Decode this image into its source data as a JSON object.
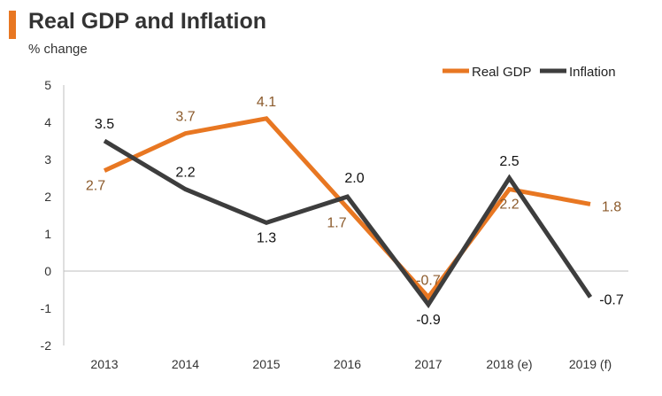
{
  "header": {
    "title": "Real GDP and Inflation",
    "subtitle": "% change"
  },
  "colors": {
    "accent": "#e87722",
    "gdp": "#e87722",
    "inflation": "#3d3d3d",
    "gdp_label": "#8b5a2b",
    "inflation_label": "#111111",
    "axis": "#bfbfbf"
  },
  "chart_data": {
    "type": "line",
    "title": "Real GDP and Inflation",
    "ylabel": "% change",
    "xlabel": "",
    "categories": [
      "2013",
      "2014",
      "2015",
      "2016",
      "2017",
      "2018 (e)",
      "2019 (f)"
    ],
    "series": [
      {
        "name": "Real GDP",
        "values": [
          2.7,
          3.7,
          4.1,
          1.7,
          -0.7,
          2.2,
          1.8
        ],
        "labels": [
          "2.7",
          "3.7",
          "4.1",
          "1.7",
          "-0.7",
          "2.2",
          "1.8"
        ]
      },
      {
        "name": "Inflation",
        "values": [
          3.5,
          2.2,
          1.3,
          2.0,
          -0.9,
          2.5,
          -0.7
        ],
        "labels": [
          "3.5",
          "2.2",
          "1.3",
          "2.0",
          "-0.9",
          "2.5",
          "-0.7"
        ]
      }
    ],
    "ylim": [
      -2,
      5
    ],
    "yticks": [
      "5",
      "4",
      "3",
      "2",
      "1",
      "0",
      "-1",
      "-2"
    ],
    "legend": "top-right",
    "grid": false
  }
}
